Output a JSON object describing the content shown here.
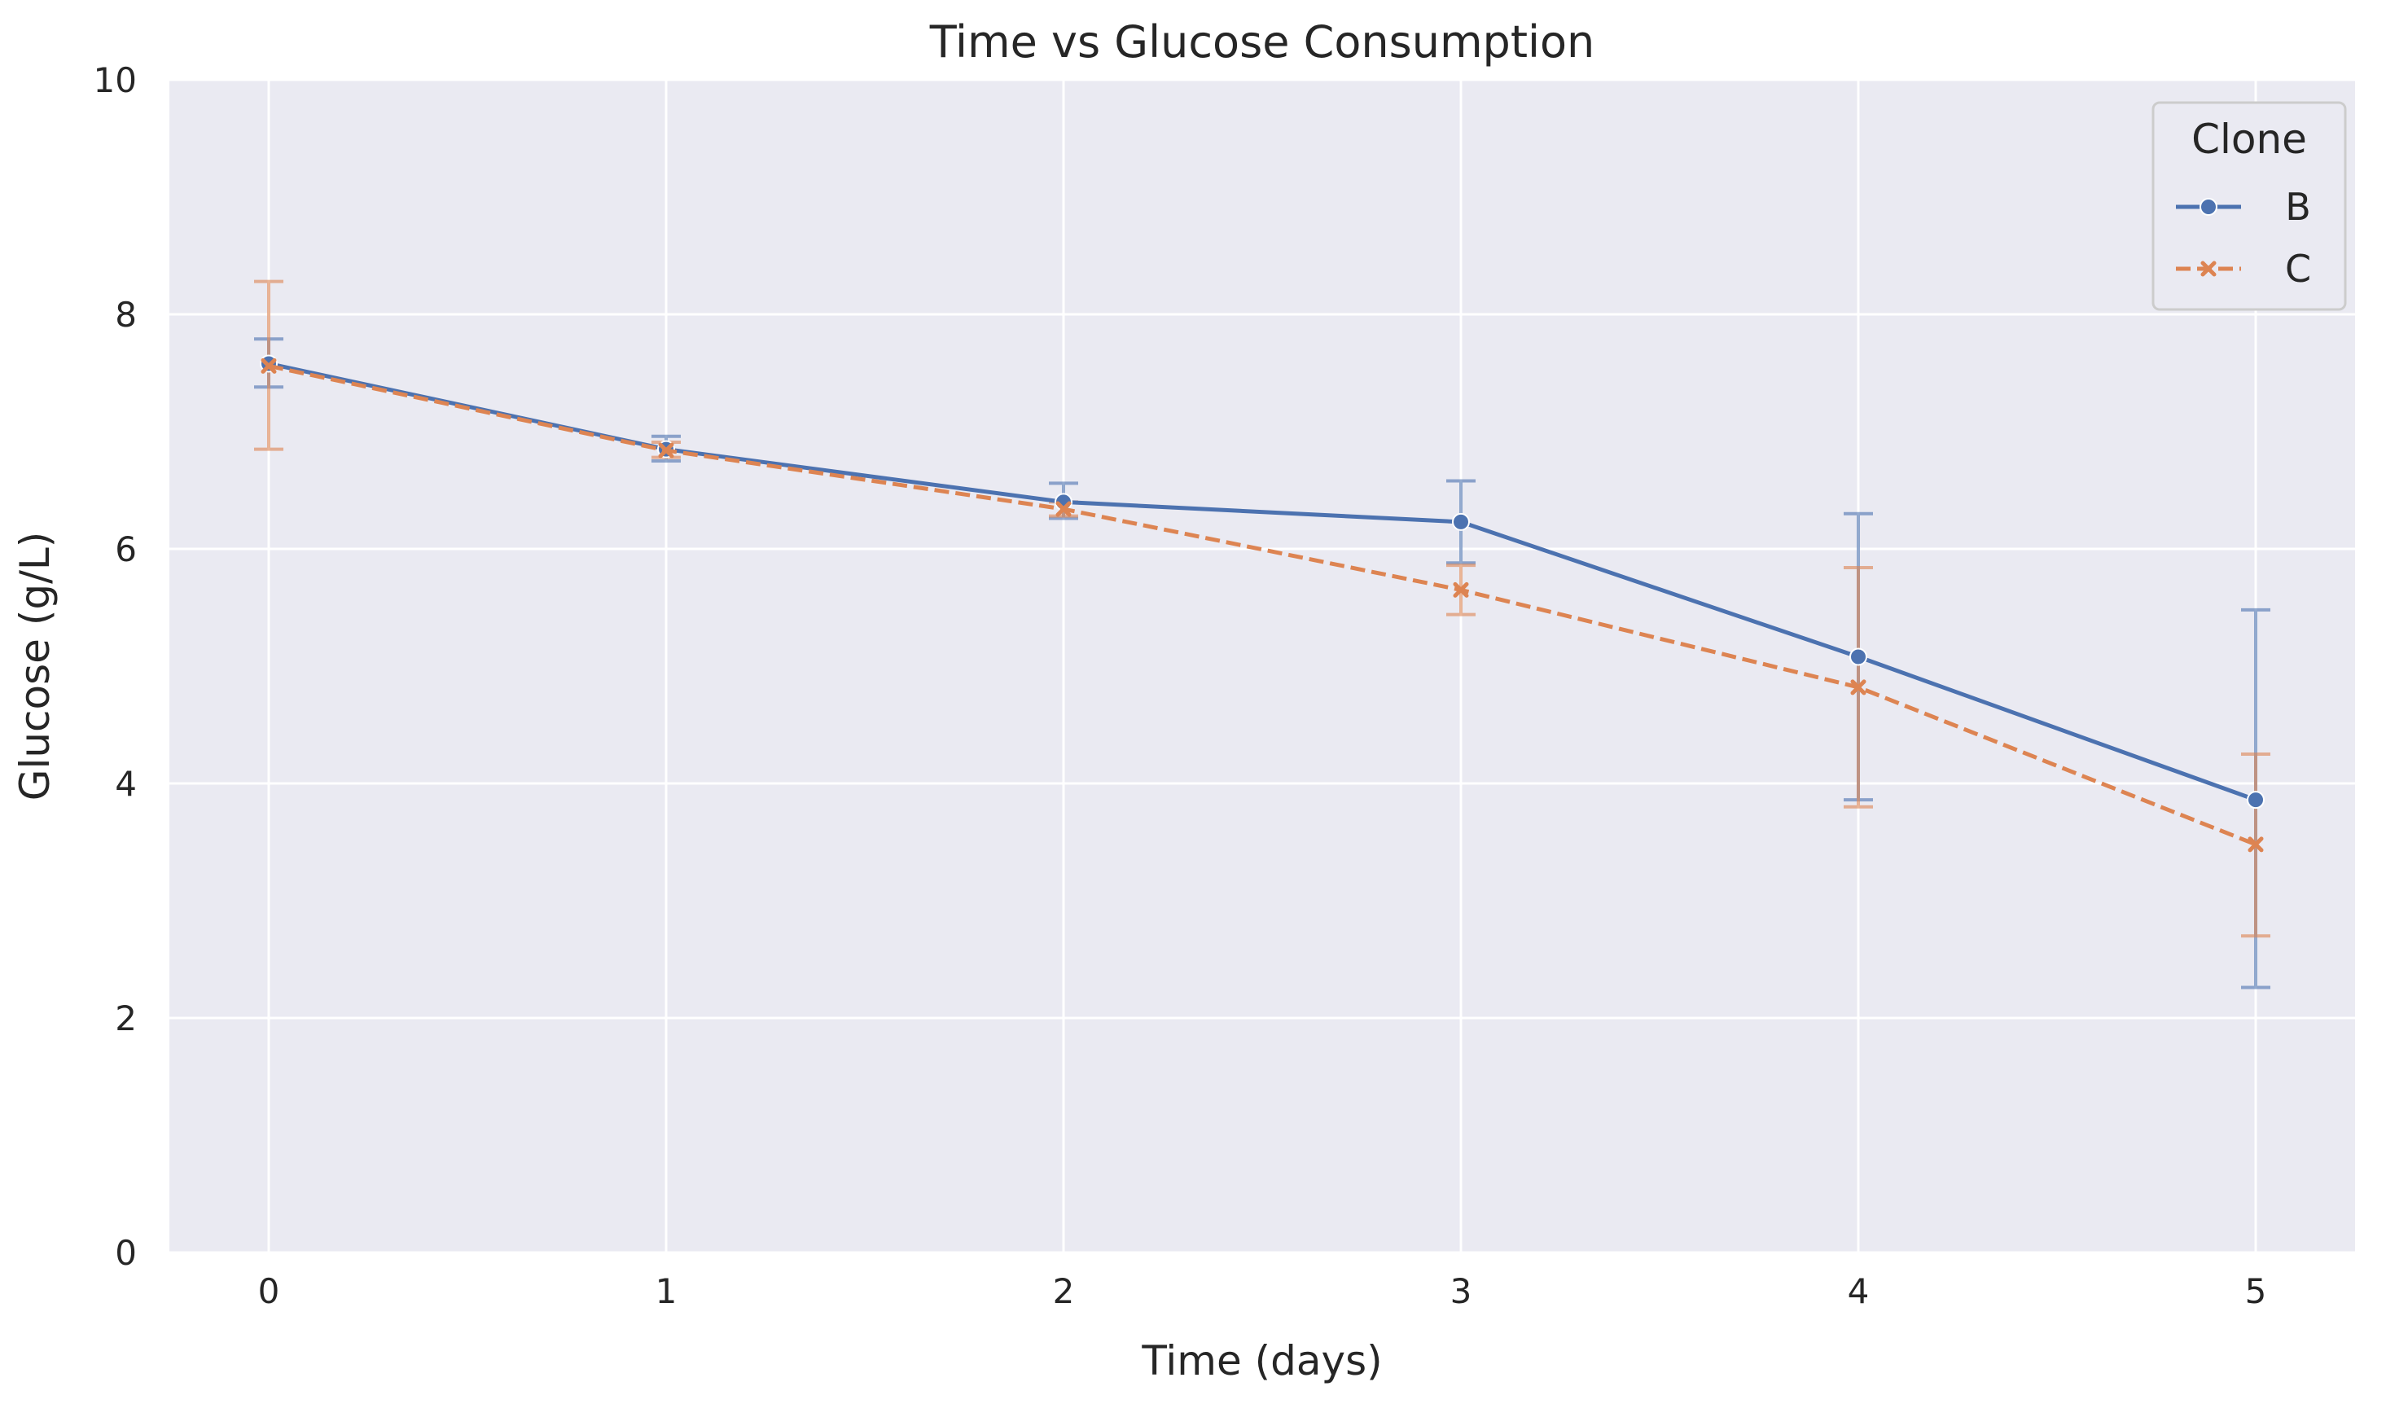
{
  "chart_data": {
    "type": "line",
    "title": "Time vs Glucose Consumption",
    "xlabel": "Time (days)",
    "ylabel": "Glucose (g/L)",
    "xlim": [
      -0.25,
      5.25
    ],
    "ylim": [
      0,
      10
    ],
    "x_ticks": [
      "0",
      "1",
      "2",
      "3",
      "4",
      "5"
    ],
    "y_ticks": [
      "0",
      "2",
      "4",
      "6",
      "8",
      "10"
    ],
    "x": [
      0,
      1,
      2,
      3,
      4,
      5
    ],
    "grid": true,
    "legend": {
      "title": "Clone",
      "placement": "top-right"
    },
    "series": [
      {
        "name": "B",
        "color": "#4c72b0",
        "marker": "circle",
        "dash": "solid",
        "values": [
          7.58,
          6.85,
          6.4,
          6.23,
          5.08,
          3.86
        ],
        "err_low": [
          7.38,
          6.75,
          6.26,
          5.88,
          3.86,
          2.26
        ],
        "err_high": [
          7.79,
          6.96,
          6.56,
          6.58,
          6.3,
          5.48
        ]
      },
      {
        "name": "C",
        "color": "#dd8452",
        "marker": "x",
        "dash": "dashed",
        "values": [
          7.56,
          6.84,
          6.34,
          5.65,
          4.82,
          3.48
        ],
        "err_low": [
          6.85,
          6.78,
          6.28,
          5.44,
          3.8,
          2.7
        ],
        "err_high": [
          8.28,
          6.91,
          6.4,
          5.86,
          5.84,
          4.25
        ]
      }
    ]
  }
}
